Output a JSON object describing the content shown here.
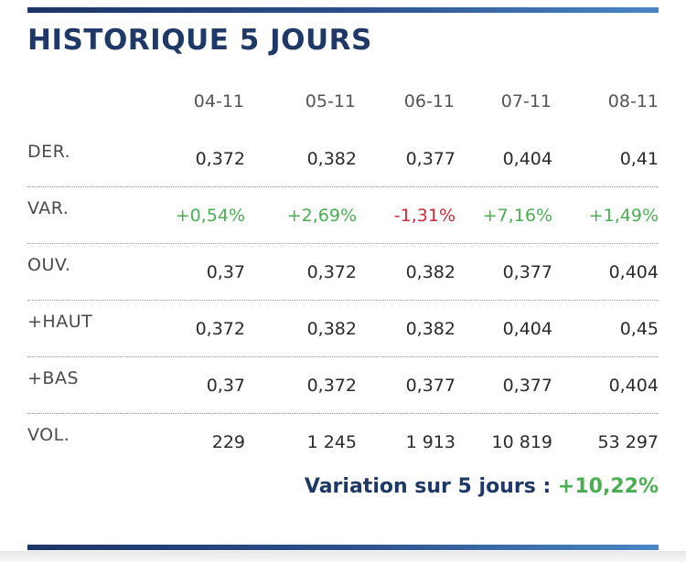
{
  "title": "HISTORIQUE 5 JOURS",
  "dates": [
    "04-11",
    "05-11",
    "06-11",
    "07-11",
    "08-11"
  ],
  "rows": [
    {
      "label": "DER.",
      "values": [
        "0,372",
        "0,382",
        "0,377",
        "0,404",
        "0,41"
      ]
    },
    {
      "label": "VAR.",
      "values": [
        "+0,54%",
        "+2,69%",
        "-1,31%",
        "+7,16%",
        "+1,49%"
      ]
    },
    {
      "label": "OUV.",
      "values": [
        "0,37",
        "0,372",
        "0,382",
        "0,377",
        "0,404"
      ]
    },
    {
      "label": "+HAUT",
      "values": [
        "0,372",
        "0,382",
        "0,382",
        "0,404",
        "0,45"
      ]
    },
    {
      "label": "+BAS",
      "values": [
        "0,37",
        "0,372",
        "0,377",
        "0,377",
        "0,404"
      ]
    },
    {
      "label": "VOL.",
      "values": [
        "229",
        "1 245",
        "1 913",
        "10 819",
        "53 297"
      ]
    }
  ],
  "summary": {
    "label": "Variation sur 5 jours :",
    "value": "+10,22%"
  },
  "colors": {
    "title": "#1e3868",
    "positive": "#4aae52",
    "negative": "#cc2a3a",
    "accent_bar": "#2b4f8a"
  }
}
